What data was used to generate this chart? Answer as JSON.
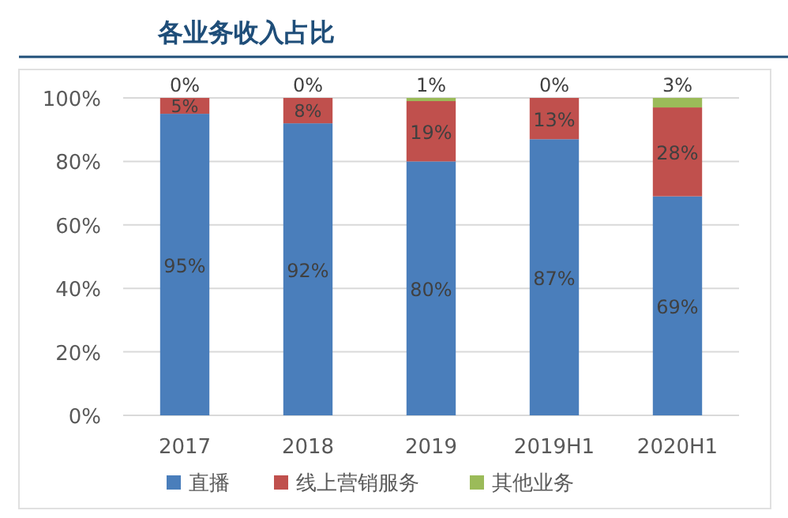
{
  "chart_data": {
    "type": "bar",
    "title": "各业务收入占比",
    "stacked": true,
    "categories": [
      "2017",
      "2018",
      "2019",
      "2019H1",
      "2020H1"
    ],
    "series": [
      {
        "name": "直播",
        "color": "#4a7ebb",
        "values": [
          95,
          92,
          80,
          87,
          69
        ],
        "value_labels": [
          "95%",
          "92%",
          "80%",
          "87%",
          "69%"
        ]
      },
      {
        "name": "线上营销服务",
        "color": "#c0504d",
        "values": [
          5,
          8,
          19,
          13,
          28
        ],
        "value_labels": [
          "5%",
          "8%",
          "19%",
          "13%",
          "28%"
        ]
      },
      {
        "name": "其他业务",
        "color": "#9bbb59",
        "values": [
          0,
          0,
          1,
          0,
          3
        ],
        "value_labels": [
          "0%",
          "0%",
          "1%",
          "0%",
          "3%"
        ]
      }
    ],
    "ylim": [
      0,
      100
    ],
    "yticks": [
      {
        "value": 0,
        "label": "0%"
      },
      {
        "value": 20,
        "label": "20%"
      },
      {
        "value": 40,
        "label": "40%"
      },
      {
        "value": 60,
        "label": "60%"
      },
      {
        "value": 80,
        "label": "80%"
      },
      {
        "value": 100,
        "label": "100%"
      }
    ],
    "grid": "y",
    "legend": "bottom"
  }
}
